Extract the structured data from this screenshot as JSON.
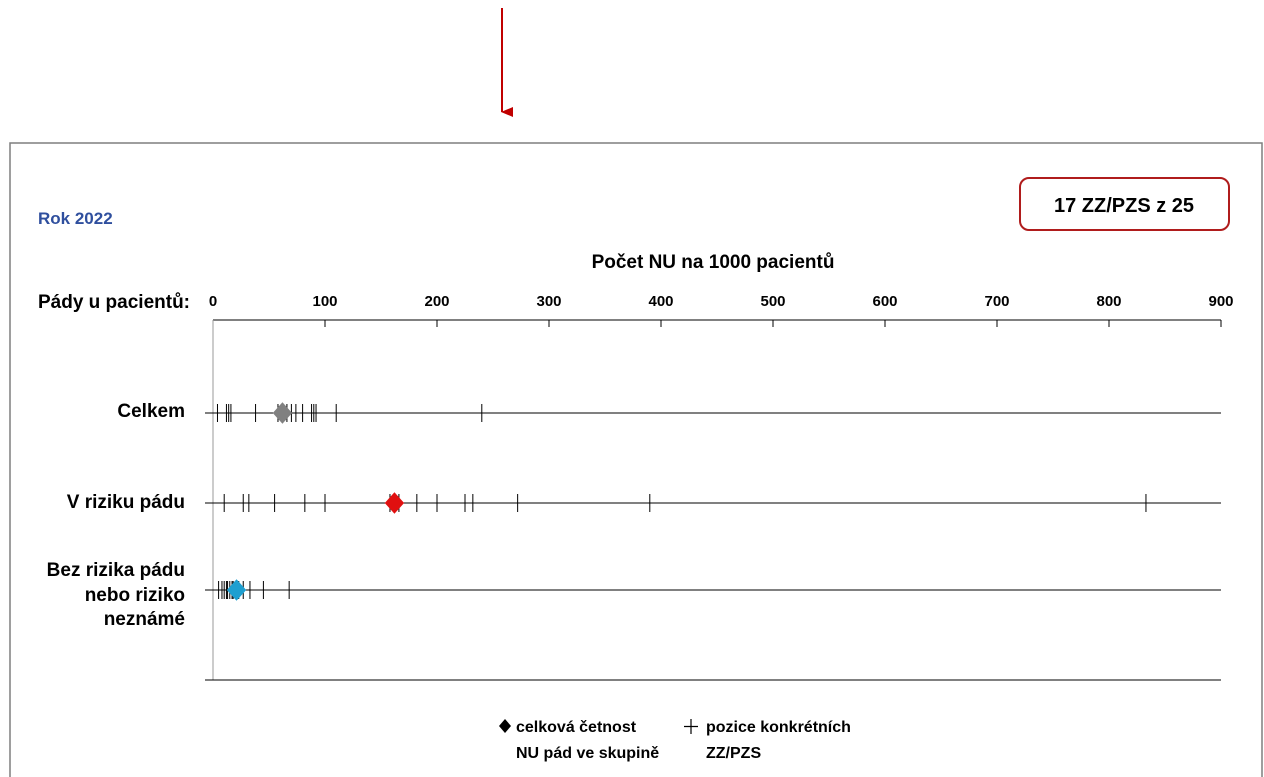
{
  "chart_data": {
    "type": "scatter",
    "year_label": "Rok 2022",
    "badge": "17 ZZ/PZS z 25",
    "title": "Počet NU na 1000 pacientů",
    "axis_row_label": "Pády u pacientů:",
    "xlim": [
      0,
      900
    ],
    "ticks": [
      0,
      100,
      200,
      300,
      400,
      500,
      600,
      700,
      800,
      900
    ],
    "tick_labels": [
      "0",
      "100",
      "200",
      "300",
      "400",
      "500",
      "600",
      "700",
      "800",
      "900"
    ],
    "categories": [
      {
        "label_lines": [
          "Celkem"
        ],
        "overall": 62,
        "positions": [
          4,
          12,
          14,
          16,
          38,
          58,
          66,
          70,
          74,
          80,
          88,
          90,
          92,
          110,
          240
        ]
      },
      {
        "label_lines": [
          "V riziku pádu"
        ],
        "overall": 162,
        "positions": [
          10,
          27,
          32,
          55,
          82,
          100,
          158,
          162,
          166,
          182,
          200,
          225,
          232,
          272,
          390,
          833
        ]
      },
      {
        "label_lines": [
          "Bez rizika pádu",
          "nebo riziko",
          "neznámé"
        ],
        "overall": 21,
        "positions": [
          5,
          8,
          10,
          12,
          13,
          15,
          17,
          18,
          20,
          23,
          27,
          33,
          45,
          68
        ]
      }
    ],
    "legend": {
      "overall_lines": [
        "celková četnost",
        "NU pád ve skupině"
      ],
      "positions_lines": [
        "pozice konkrétních",
        "ZZ/PZS"
      ]
    },
    "colors": {
      "arrow": "#c00000",
      "year_label": "#2f4f9e",
      "badge_border": "#b01c1c",
      "frame": "#7f7f7f",
      "axis": "#000000",
      "series_markers": [
        "#808080",
        "#e01010",
        "#1e9fd0"
      ]
    }
  }
}
